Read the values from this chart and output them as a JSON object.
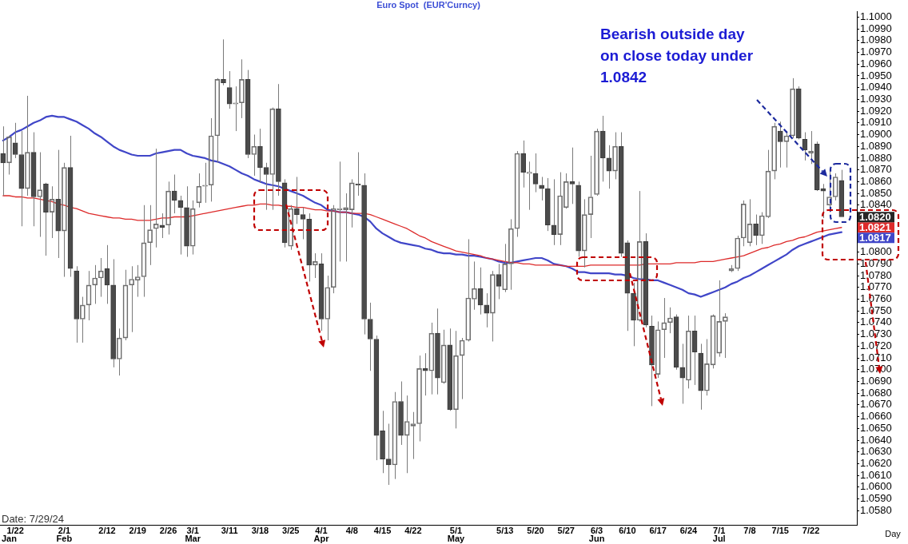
{
  "chart_data": {
    "type": "candlestick",
    "title": "Euro Spot  (EUR'Curncy)",
    "xlabel": "Day",
    "marker": "none",
    "categories": [
      null,
      null,
      "1/22",
      null,
      null,
      null,
      null,
      null,
      null,
      null,
      "2/1",
      null,
      null,
      null,
      null,
      null,
      null,
      "2/12",
      null,
      null,
      null,
      null,
      "2/19",
      null,
      null,
      null,
      null,
      "2/26",
      null,
      null,
      null,
      "3/1",
      null,
      null,
      null,
      null,
      null,
      "3/11",
      null,
      null,
      null,
      null,
      "3/18",
      null,
      null,
      null,
      null,
      "3/25",
      null,
      null,
      null,
      null,
      "4/1",
      null,
      null,
      null,
      null,
      "4/8",
      null,
      null,
      null,
      null,
      "4/15",
      null,
      null,
      null,
      null,
      "4/22",
      null,
      null,
      null,
      null,
      null,
      null,
      "5/1",
      null,
      null,
      null,
      null,
      null,
      null,
      null,
      "5/13",
      null,
      null,
      null,
      null,
      "5/20",
      null,
      null,
      null,
      null,
      "5/27",
      null,
      null,
      null,
      null,
      "6/3",
      null,
      null,
      null,
      null,
      "6/10",
      null,
      null,
      null,
      null,
      "6/17",
      null,
      null,
      null,
      null,
      "6/24",
      null,
      null,
      null,
      null,
      "7/1",
      null,
      null,
      null,
      null,
      "7/8",
      null,
      null,
      null,
      null,
      "7/15",
      null,
      null,
      null,
      null,
      "7/22",
      null,
      null,
      null,
      null,
      null
    ],
    "ohlc": [
      [
        1.0884,
        1.0907,
        1.0848,
        1.0876
      ],
      [
        1.0876,
        1.0899,
        1.0866,
        1.0898
      ],
      [
        1.0893,
        1.091,
        1.088,
        1.0883
      ],
      [
        1.0883,
        1.0903,
        1.0822,
        1.0854
      ],
      [
        1.0854,
        1.0933,
        1.0848,
        1.0885
      ],
      [
        1.0885,
        1.0902,
        1.0822,
        1.0847
      ],
      [
        1.0847,
        1.0885,
        1.0813,
        1.0853
      ],
      [
        1.0858,
        1.0859,
        1.0797,
        1.0834
      ],
      [
        1.0834,
        1.0856,
        1.0812,
        1.0845
      ],
      [
        1.0845,
        1.0887,
        1.0795,
        1.0818
      ],
      [
        1.0818,
        1.0876,
        1.0779,
        1.0872
      ],
      [
        1.0872,
        1.0899,
        1.0779,
        1.0786
      ],
      [
        1.0784,
        1.0788,
        1.0723,
        1.0743
      ],
      [
        1.0743,
        1.0762,
        1.0723,
        1.0755
      ],
      [
        1.0755,
        1.0784,
        1.0742,
        1.0772
      ],
      [
        1.0772,
        1.0789,
        1.0756,
        1.0778
      ],
      [
        1.0778,
        1.0795,
        1.0762,
        1.0784
      ],
      [
        1.0786,
        1.0806,
        1.0756,
        1.0772
      ],
      [
        1.0772,
        1.0794,
        1.0702,
        1.0709
      ],
      [
        1.0709,
        1.0735,
        1.0695,
        1.0727
      ],
      [
        1.0727,
        1.0785,
        1.0725,
        1.0772
      ],
      [
        1.0772,
        1.0788,
        1.0732,
        1.0777
      ],
      [
        1.0776,
        1.0789,
        1.0762,
        1.0779
      ],
      [
        1.0779,
        1.084,
        1.0762,
        1.0808
      ],
      [
        1.0808,
        1.084,
        1.0789,
        1.0819
      ],
      [
        1.082,
        1.0888,
        1.0804,
        1.0824
      ],
      [
        1.0823,
        1.0833,
        1.0812,
        1.0821
      ],
      [
        1.0823,
        1.086,
        1.0815,
        1.0852
      ],
      [
        1.0852,
        1.0866,
        1.0833,
        1.0844
      ],
      [
        1.0844,
        1.0848,
        1.0798,
        1.0838
      ],
      [
        1.0838,
        1.0856,
        1.0796,
        1.0805
      ],
      [
        1.0805,
        1.0844,
        1.0798,
        1.0837
      ],
      [
        1.0842,
        1.0867,
        1.0838,
        1.0856
      ],
      [
        1.0856,
        1.0876,
        1.0842,
        1.0857
      ],
      [
        1.0857,
        1.0914,
        1.0843,
        1.0899
      ],
      [
        1.0899,
        1.0948,
        1.0876,
        1.0947
      ],
      [
        1.0947,
        1.0981,
        1.0942,
        1.0944
      ],
      [
        1.094,
        1.0954,
        1.0922,
        1.0926
      ],
      [
        1.0926,
        1.0941,
        1.0903,
        1.0927
      ],
      [
        1.0927,
        1.0964,
        1.0914,
        1.0947
      ],
      [
        1.0947,
        1.0955,
        1.088,
        1.0883
      ],
      [
        1.0883,
        1.09,
        1.0865,
        1.089
      ],
      [
        1.089,
        1.0905,
        1.0859,
        1.0872
      ],
      [
        1.0872,
        1.0876,
        1.0836,
        1.0866
      ],
      [
        1.0866,
        1.0923,
        1.0836,
        1.0922
      ],
      [
        1.0922,
        1.0943,
        1.0848,
        1.086
      ],
      [
        1.0859,
        1.0862,
        1.0804,
        1.0808
      ],
      [
        1.0805,
        1.084,
        1.0802,
        1.0837
      ],
      [
        1.0837,
        1.0864,
        1.0824,
        1.0832
      ],
      [
        1.0832,
        1.0838,
        1.0811,
        1.0828
      ],
      [
        1.0828,
        1.0833,
        1.0775,
        1.0789
      ],
      [
        1.0789,
        1.0799,
        1.0778,
        1.0792
      ],
      [
        1.079,
        1.0799,
        1.0733,
        1.0743
      ],
      [
        1.0743,
        1.078,
        1.0725,
        1.077
      ],
      [
        1.077,
        1.084,
        1.0765,
        1.0837
      ],
      [
        1.0836,
        1.0877,
        1.0792,
        1.0837
      ],
      [
        1.0836,
        1.085,
        1.0792,
        1.0838
      ],
      [
        1.0836,
        1.0862,
        1.0821,
        1.0859
      ],
      [
        1.0858,
        1.0885,
        1.0848,
        1.0857
      ],
      [
        1.0857,
        1.0867,
        1.073,
        1.0743
      ],
      [
        1.0743,
        1.0757,
        1.0699,
        1.0726
      ],
      [
        1.0726,
        1.0729,
        1.0623,
        1.0644
      ],
      [
        1.0648,
        1.0665,
        1.0612,
        1.0624
      ],
      [
        1.0624,
        1.0654,
        1.0602,
        1.0619
      ],
      [
        1.0619,
        1.0681,
        1.0607,
        1.0673
      ],
      [
        1.0673,
        1.069,
        1.0636,
        1.0644
      ],
      [
        1.0644,
        1.0678,
        1.0612,
        1.0656
      ],
      [
        1.0652,
        1.0664,
        1.0624,
        1.0654
      ],
      [
        1.0654,
        1.0712,
        1.0639,
        1.0701
      ],
      [
        1.0701,
        1.0714,
        1.0678,
        1.0699
      ],
      [
        1.0699,
        1.074,
        1.0679,
        1.0731
      ],
      [
        1.0731,
        1.0752,
        1.0679,
        1.0693
      ],
      [
        1.0689,
        1.0734,
        1.0688,
        1.0721
      ],
      [
        1.0721,
        1.0735,
        1.0665,
        1.0666
      ],
      [
        1.0666,
        1.0733,
        1.065,
        1.0712
      ],
      [
        1.0712,
        1.0727,
        1.0675,
        1.0725
      ],
      [
        1.0725,
        1.0811,
        1.0724,
        1.0761
      ],
      [
        1.076,
        1.0792,
        1.0751,
        1.0769
      ],
      [
        1.0769,
        1.0787,
        1.0747,
        1.0755
      ],
      [
        1.0755,
        1.0765,
        1.0736,
        1.0748
      ],
      [
        1.0748,
        1.0784,
        1.0724,
        1.0781
      ],
      [
        1.0781,
        1.079,
        1.076,
        1.0771
      ],
      [
        1.0768,
        1.0807,
        1.0766,
        1.079
      ],
      [
        1.079,
        1.0828,
        1.0768,
        1.082
      ],
      [
        1.082,
        1.0886,
        1.0813,
        1.0884
      ],
      [
        1.0884,
        1.0895,
        1.0855,
        1.0868
      ],
      [
        1.0867,
        1.0877,
        1.0836,
        1.0868
      ],
      [
        1.0867,
        1.0884,
        1.0851,
        1.0858
      ],
      [
        1.0857,
        1.0864,
        1.0844,
        1.0854
      ],
      [
        1.0854,
        1.0863,
        1.0818,
        1.0823
      ],
      [
        1.0823,
        1.0862,
        1.0806,
        1.0815
      ],
      [
        1.0815,
        1.0868,
        1.0806,
        1.0848
      ],
      [
        1.0838,
        1.0867,
        1.0837,
        1.086
      ],
      [
        1.086,
        1.0889,
        1.0841,
        1.0858
      ],
      [
        1.0857,
        1.086,
        1.0796,
        1.0801
      ],
      [
        1.0801,
        1.0845,
        1.0787,
        1.0832
      ],
      [
        1.0832,
        1.0882,
        1.0812,
        1.0847
      ],
      [
        1.0849,
        1.0905,
        1.0848,
        1.0903
      ],
      [
        1.0903,
        1.0916,
        1.086,
        1.088
      ],
      [
        1.088,
        1.0891,
        1.0854,
        1.0869
      ],
      [
        1.0869,
        1.0902,
        1.0862,
        1.089
      ],
      [
        1.089,
        1.0902,
        1.0796,
        1.0799
      ],
      [
        1.0808,
        1.081,
        1.0733,
        1.0765
      ],
      [
        1.0765,
        1.0774,
        1.072,
        1.0742
      ],
      [
        1.0742,
        1.0852,
        1.0741,
        1.0809
      ],
      [
        1.0809,
        1.0816,
        1.0736,
        1.0738
      ],
      [
        1.0737,
        1.0746,
        1.0669,
        1.0704
      ],
      [
        1.0696,
        1.0741,
        1.0693,
        1.0734
      ],
      [
        1.0734,
        1.0761,
        1.071,
        1.074
      ],
      [
        1.074,
        1.0753,
        1.0731,
        1.0744
      ],
      [
        1.0745,
        1.0747,
        1.07,
        1.0702
      ],
      [
        1.0702,
        1.0722,
        1.0671,
        1.0693
      ],
      [
        1.0691,
        1.0746,
        1.0684,
        1.0733
      ],
      [
        1.0733,
        1.0746,
        1.0687,
        1.0715
      ],
      [
        1.0714,
        1.0722,
        1.0666,
        1.0682
      ],
      [
        1.0682,
        1.0726,
        1.0678,
        1.0705
      ],
      [
        1.0704,
        1.0747,
        1.0701,
        1.0746
      ],
      [
        1.0714,
        1.0776,
        1.0711,
        1.0741
      ],
      [
        1.0741,
        1.0748,
        1.071,
        1.0745
      ],
      [
        1.0784,
        1.0789,
        1.0783,
        1.0786
      ],
      [
        1.0786,
        1.0814,
        1.0784,
        1.0812
      ],
      [
        1.0812,
        1.0844,
        1.0805,
        1.0841
      ],
      [
        1.0808,
        1.0845,
        1.0805,
        1.0824
      ],
      [
        1.0824,
        1.0832,
        1.0806,
        1.0814
      ],
      [
        1.0814,
        1.0834,
        1.0807,
        1.0831
      ],
      [
        1.083,
        1.0887,
        1.0829,
        1.0869
      ],
      [
        1.0869,
        1.091,
        1.0862,
        1.0907
      ],
      [
        1.0903,
        1.0911,
        1.0872,
        1.0894
      ],
      [
        1.0894,
        1.0903,
        1.0872,
        1.0899
      ],
      [
        1.0899,
        1.0948,
        1.0897,
        1.0939
      ],
      [
        1.0939,
        1.0941,
        1.0896,
        1.0897
      ],
      [
        1.0896,
        1.0902,
        1.0878,
        1.0887
      ],
      [
        1.0884,
        1.0903,
        1.0875,
        1.0886
      ],
      [
        1.0892,
        1.0894,
        1.0852,
        1.0853
      ],
      [
        1.0854,
        1.0858,
        1.0829,
        1.0852
      ],
      [
        1.084,
        1.087,
        1.0834,
        1.0847
      ],
      [
        1.0847,
        1.0867,
        1.0844,
        1.0864
      ],
      [
        1.0861,
        1.087,
        1.083,
        1.083
      ]
    ],
    "series": [
      {
        "type": "line",
        "color": "#dd2a2a",
        "values": [
          1.0848,
          1.0848,
          1.0847,
          1.0847,
          1.0846,
          1.0846,
          1.0845,
          1.0844,
          1.0843,
          1.0841,
          1.084,
          1.0838,
          1.0837,
          1.0835,
          1.0833,
          1.0832,
          1.0831,
          1.083,
          1.0829,
          1.0829,
          1.0828,
          1.0828,
          1.0827,
          1.0827,
          1.0827,
          1.0828,
          1.0829,
          1.0829,
          1.083,
          1.083,
          1.083,
          1.0831,
          1.0832,
          1.0833,
          1.0834,
          1.0835,
          1.0836,
          1.0837,
          1.0838,
          1.0839,
          1.084,
          1.084,
          1.0841,
          1.0841,
          1.084,
          1.084,
          1.0839,
          1.0839,
          1.0838,
          1.0838,
          1.0837,
          1.0836,
          1.0836,
          1.0835,
          1.0835,
          1.0834,
          1.0834,
          1.0833,
          1.0833,
          1.0833,
          1.0832,
          1.083,
          1.0828,
          1.0826,
          1.0824,
          1.0822,
          1.082,
          1.0817,
          1.0814,
          1.0812,
          1.0809,
          1.0807,
          1.0805,
          1.0803,
          1.0801,
          1.08,
          1.0799,
          1.0798,
          1.0797,
          1.0795,
          1.0794,
          1.0793,
          1.0792,
          1.0791,
          1.0791,
          1.079,
          1.079,
          1.0789,
          1.0789,
          1.0789,
          1.0789,
          1.0789,
          1.0788,
          1.0788,
          1.0788,
          1.0788,
          1.0789,
          1.0789,
          1.0789,
          1.0789,
          1.0789,
          1.0789,
          1.0789,
          1.0789,
          1.0789,
          1.079,
          1.079,
          1.079,
          1.079,
          1.079,
          1.0791,
          1.0791,
          1.0791,
          1.0791,
          1.0792,
          1.0792,
          1.0792,
          1.0793,
          1.0794,
          1.0795,
          1.0796,
          1.0797,
          1.0799,
          1.0801,
          1.0803,
          1.0804,
          1.0806,
          1.0807,
          1.0809,
          1.081,
          1.0812,
          1.0813,
          1.0815,
          1.0817,
          1.0818,
          1.0819,
          1.082,
          1.0821
        ],
        "value_labels": [
          null,
          null,
          null,
          null,
          null,
          null,
          null,
          null,
          null,
          null,
          null,
          null,
          null,
          null,
          null,
          null,
          null,
          null,
          null,
          null,
          null,
          null,
          null,
          null,
          null,
          null,
          null,
          null,
          null,
          null,
          null,
          null,
          null,
          null,
          null,
          null,
          null,
          null,
          null,
          null,
          null,
          null,
          null,
          null,
          null,
          null,
          null,
          null,
          null,
          null,
          null,
          null,
          null,
          null,
          null,
          null,
          null,
          null,
          null,
          null,
          null,
          null,
          null,
          null,
          null,
          null,
          null,
          null,
          null,
          null,
          null,
          null,
          null,
          null,
          null,
          null,
          null,
          null,
          null,
          null,
          null,
          null,
          null,
          null,
          null,
          null,
          null,
          null,
          null,
          null,
          null,
          null,
          null,
          null,
          null,
          null,
          null,
          null,
          null,
          null,
          null,
          null,
          null,
          null,
          null,
          null,
          null,
          null,
          null,
          null,
          null,
          null,
          null,
          null,
          null,
          null,
          null,
          null,
          null,
          null,
          null,
          null,
          null,
          null,
          null,
          null,
          null,
          null,
          null,
          null,
          null,
          null,
          null,
          null,
          null,
          null,
          null,
          "1.0821"
        ]
      },
      {
        "type": "line",
        "color": "#4046c8",
        "values": [
          1.0895,
          1.0898,
          1.0902,
          1.0904,
          1.0907,
          1.091,
          1.0912,
          1.0915,
          1.0916,
          1.0915,
          1.0915,
          1.0913,
          1.0911,
          1.0908,
          1.0905,
          1.0901,
          1.0898,
          1.0894,
          1.089,
          1.0887,
          1.0885,
          1.0883,
          1.0882,
          1.0882,
          1.0882,
          1.0884,
          1.0885,
          1.0886,
          1.0887,
          1.0887,
          1.0884,
          1.0882,
          1.0881,
          1.088,
          1.0878,
          1.0877,
          1.0875,
          1.0873,
          1.087,
          1.0867,
          1.0865,
          1.0862,
          1.086,
          1.0858,
          1.0857,
          1.0856,
          1.0854,
          1.0852,
          1.085,
          1.0848,
          1.0845,
          1.0842,
          1.084,
          1.0836,
          1.0835,
          1.0834,
          1.0834,
          1.0833,
          1.0832,
          1.083,
          1.0826,
          1.082,
          1.0816,
          1.0813,
          1.081,
          1.0808,
          1.0807,
          1.0806,
          1.0805,
          1.0803,
          1.0802,
          1.08,
          1.0799,
          1.0799,
          1.0798,
          1.0798,
          1.0797,
          1.0797,
          1.0796,
          1.0795,
          1.0794,
          1.0792,
          1.0791,
          1.0791,
          1.0792,
          1.0793,
          1.0794,
          1.0795,
          1.0795,
          1.0793,
          1.079,
          1.0789,
          1.0788,
          1.0786,
          1.0783,
          1.0783,
          1.0782,
          1.0782,
          1.0782,
          1.0782,
          1.0781,
          1.0781,
          1.078,
          1.0778,
          1.0777,
          1.0777,
          1.0776,
          1.0776,
          1.0774,
          1.0772,
          1.077,
          1.0768,
          1.0765,
          1.0764,
          1.0762,
          1.0764,
          1.0766,
          1.0768,
          1.077,
          1.0773,
          1.0775,
          1.0778,
          1.078,
          1.0783,
          1.0786,
          1.0789,
          1.0792,
          1.0795,
          1.0798,
          1.0802,
          1.0805,
          1.0807,
          1.0809,
          1.0811,
          1.0813,
          1.0815,
          1.0816,
          1.0817
        ],
        "value_labels": [
          null,
          null,
          null,
          null,
          null,
          null,
          null,
          null,
          null,
          null,
          null,
          null,
          null,
          null,
          null,
          null,
          null,
          null,
          null,
          null,
          null,
          null,
          null,
          null,
          null,
          null,
          null,
          null,
          null,
          null,
          null,
          null,
          null,
          null,
          null,
          null,
          null,
          null,
          null,
          null,
          null,
          null,
          null,
          null,
          null,
          null,
          null,
          null,
          null,
          null,
          null,
          null,
          null,
          null,
          null,
          null,
          null,
          null,
          null,
          null,
          null,
          null,
          null,
          null,
          null,
          null,
          null,
          null,
          null,
          null,
          null,
          null,
          null,
          null,
          null,
          null,
          null,
          null,
          null,
          null,
          null,
          null,
          null,
          null,
          null,
          null,
          null,
          null,
          null,
          null,
          null,
          null,
          null,
          null,
          null,
          null,
          null,
          null,
          null,
          null,
          null,
          null,
          null,
          null,
          null,
          null,
          null,
          null,
          null,
          null,
          null,
          null,
          null,
          null,
          null,
          null,
          null,
          null,
          null,
          null,
          null,
          null,
          null,
          null,
          null,
          null,
          null,
          null,
          null,
          null,
          null,
          null,
          null,
          null,
          null,
          null,
          null,
          "1.0817"
        ]
      }
    ],
    "ylim": [
      1.0568,
      1.1005
    ],
    "yticks": [
      {
        "value": 1.058,
        "label": "1.0580"
      },
      {
        "value": 1.059,
        "label": "1.0590"
      },
      {
        "value": 1.06,
        "label": "1.0600"
      },
      {
        "value": 1.061,
        "label": "1.0610"
      },
      {
        "value": 1.062,
        "label": "1.0620"
      },
      {
        "value": 1.063,
        "label": "1.0630"
      },
      {
        "value": 1.064,
        "label": "1.0640"
      },
      {
        "value": 1.065,
        "label": "1.0650"
      },
      {
        "value": 1.066,
        "label": "1.0660"
      },
      {
        "value": 1.067,
        "label": "1.0670"
      },
      {
        "value": 1.068,
        "label": "1.0680"
      },
      {
        "value": 1.069,
        "label": "1.0690"
      },
      {
        "value": 1.07,
        "label": "1.0700"
      },
      {
        "value": 1.071,
        "label": "1.0710"
      },
      {
        "value": 1.072,
        "label": "1.0720"
      },
      {
        "value": 1.073,
        "label": "1.0730"
      },
      {
        "value": 1.074,
        "label": "1.0740"
      },
      {
        "value": 1.075,
        "label": "1.0750"
      },
      {
        "value": 1.076,
        "label": "1.0760"
      },
      {
        "value": 1.077,
        "label": "1.0770"
      },
      {
        "value": 1.078,
        "label": "1.0780"
      },
      {
        "value": 1.079,
        "label": "1.0790"
      },
      {
        "value": 1.08,
        "label": "1.0800"
      },
      {
        "value": 1.084,
        "label": "1.0840"
      },
      {
        "value": 1.085,
        "label": "1.0850"
      },
      {
        "value": 1.086,
        "label": "1.0860"
      },
      {
        "value": 1.087,
        "label": "1.0870"
      },
      {
        "value": 1.088,
        "label": "1.0880"
      },
      {
        "value": 1.089,
        "label": "1.0890"
      },
      {
        "value": 1.09,
        "label": "1.0900"
      },
      {
        "value": 1.091,
        "label": "1.0910"
      },
      {
        "value": 1.092,
        "label": "1.0920"
      },
      {
        "value": 1.093,
        "label": "1.0930"
      },
      {
        "value": 1.094,
        "label": "1.0940"
      },
      {
        "value": 1.095,
        "label": "1.0950"
      },
      {
        "value": 1.096,
        "label": "1.0960"
      },
      {
        "value": 1.097,
        "label": "1.0970"
      },
      {
        "value": 1.098,
        "label": "1.0980"
      },
      {
        "value": 1.099,
        "label": "1.0990"
      },
      {
        "value": 1.1,
        "label": "1.1000"
      }
    ],
    "annotations": [
      "Bearish outside day on close today under 1.0842",
      "Date: 7/29/24",
      "Jan",
      "Feb",
      "Mar",
      "Apr",
      "May",
      "Jun",
      "Jul",
      "1.0820"
    ]
  }
}
